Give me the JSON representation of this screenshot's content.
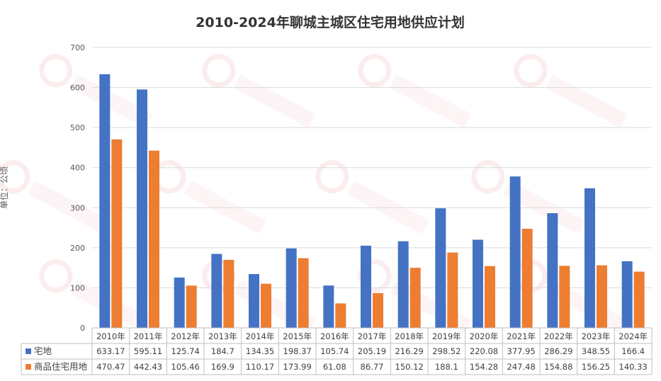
{
  "chart_data": {
    "type": "bar",
    "title": "2010-2024年聊城主城区住宅用地供应计划",
    "ylabel": "单位：公顷",
    "xlabel": "",
    "ylim": [
      0,
      700
    ],
    "yticks": [
      0,
      100,
      200,
      300,
      400,
      500,
      600,
      700
    ],
    "grid": true,
    "legend": "bottom-table",
    "categories": [
      "2010年",
      "2011年",
      "2012年",
      "2013年",
      "2014年",
      "2015年",
      "2016年",
      "2017年",
      "2018年",
      "2019年",
      "2020年",
      "2021年",
      "2022年",
      "2023年",
      "2024年"
    ],
    "series": [
      {
        "name": "宅地",
        "color": "#4472C4",
        "values": [
          633.17,
          595.11,
          125.74,
          184.7,
          134.35,
          198.37,
          105.74,
          205.19,
          216.29,
          298.52,
          220.08,
          377.95,
          286.29,
          348.55,
          166.4
        ]
      },
      {
        "name": "商品住宅用地",
        "color": "#ED7D31",
        "values": [
          470.47,
          442.43,
          105.46,
          169.9,
          110.17,
          173.99,
          61.08,
          86.77,
          150.12,
          188.1,
          154.28,
          247.48,
          154.88,
          156.25,
          140.33
        ]
      }
    ]
  }
}
